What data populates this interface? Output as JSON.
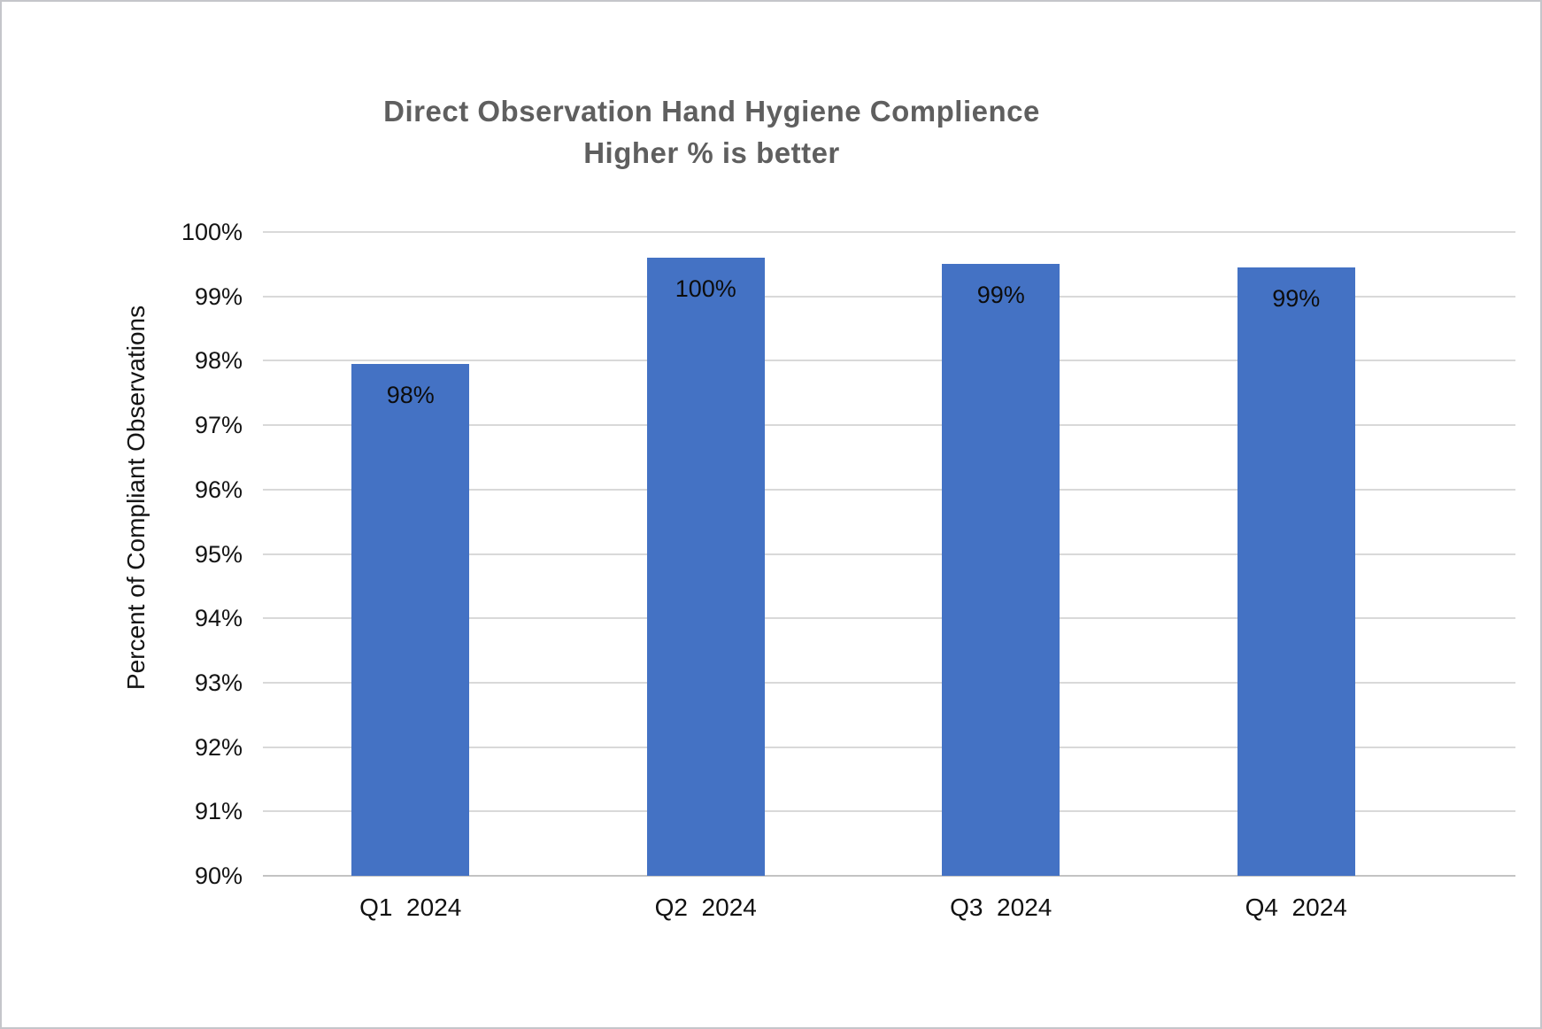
{
  "window": {
    "background_color": "#ffffff",
    "border_color": "#c5c6ca"
  },
  "chart_data": {
    "type": "bar",
    "title": "Direct Observation Hand Hygiene Complience",
    "subtitle": "Higher % is better",
    "ylabel": "Percent of Compliant Observations",
    "xlabel": "",
    "categories": [
      "Q1  2024",
      "Q2  2024",
      "Q3  2024",
      "Q4  2024"
    ],
    "values": [
      98,
      100,
      99,
      99
    ],
    "bar_labels": [
      "98%",
      "100%",
      "99%",
      "99%"
    ],
    "plotted_values": [
      97.95,
      99.6,
      99.5,
      99.45
    ],
    "data_label_position": "inside-end",
    "ylim": [
      90,
      100
    ],
    "ytick_step": 1,
    "ytick_labels": [
      "100%",
      "99%",
      "98%",
      "97%",
      "96%",
      "95%",
      "94%",
      "93%",
      "92%",
      "91%",
      "90%"
    ],
    "grid": true,
    "legend_position": "none",
    "bar_color": "#4472c4",
    "gridline_color": "#d9d9d9",
    "axis_line_color": "#c3c3c3",
    "title_color": "#5f5f5f",
    "tick_label_color": "#141414",
    "data_label_color": "#0d0d0d"
  }
}
